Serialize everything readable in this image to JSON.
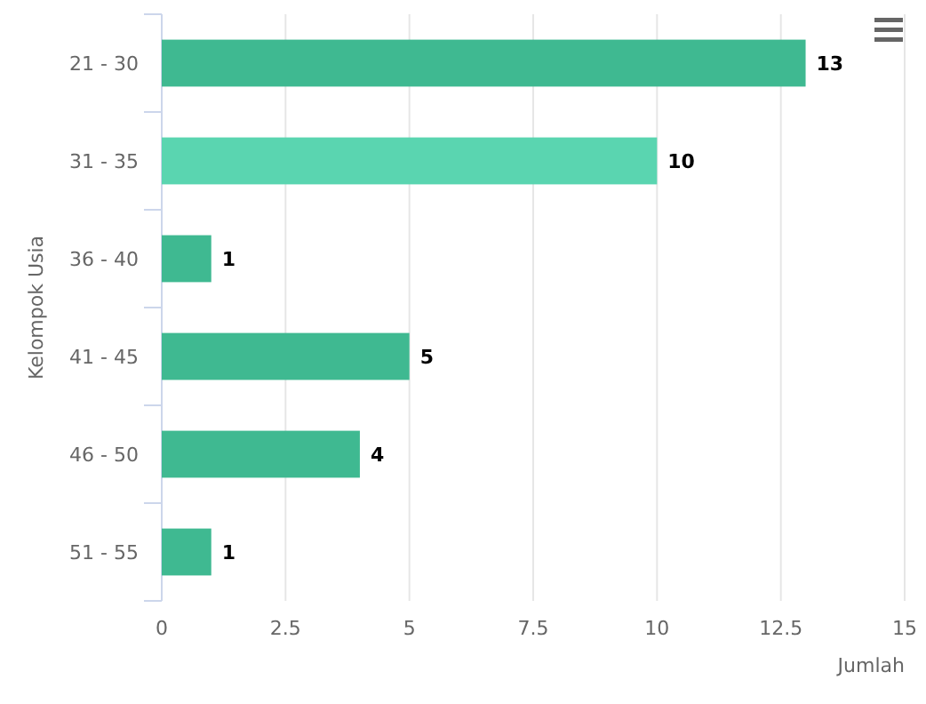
{
  "chart_data": {
    "type": "bar",
    "orientation": "horizontal",
    "ylabel": "Kelompok Usia",
    "xlabel": "Jumlah",
    "categories": [
      "21 - 30",
      "31 - 35",
      "36 - 40",
      "41 - 45",
      "46 - 50",
      "51 - 55"
    ],
    "values": [
      13,
      10,
      1,
      5,
      4,
      1
    ],
    "colors": [
      "#3fb991",
      "#5ad5b0",
      "#3fb991",
      "#3fb991",
      "#3fb991",
      "#3fb991"
    ],
    "xlim": [
      0,
      15
    ],
    "xticks": [
      0,
      {
        "value": 2.5,
        "label": "2.5"
      },
      5,
      {
        "value": 7.5,
        "label": "7.5"
      },
      10,
      {
        "value": 12.5,
        "label": "12.5"
      },
      15
    ],
    "grid": "x",
    "data_labels": true
  }
}
